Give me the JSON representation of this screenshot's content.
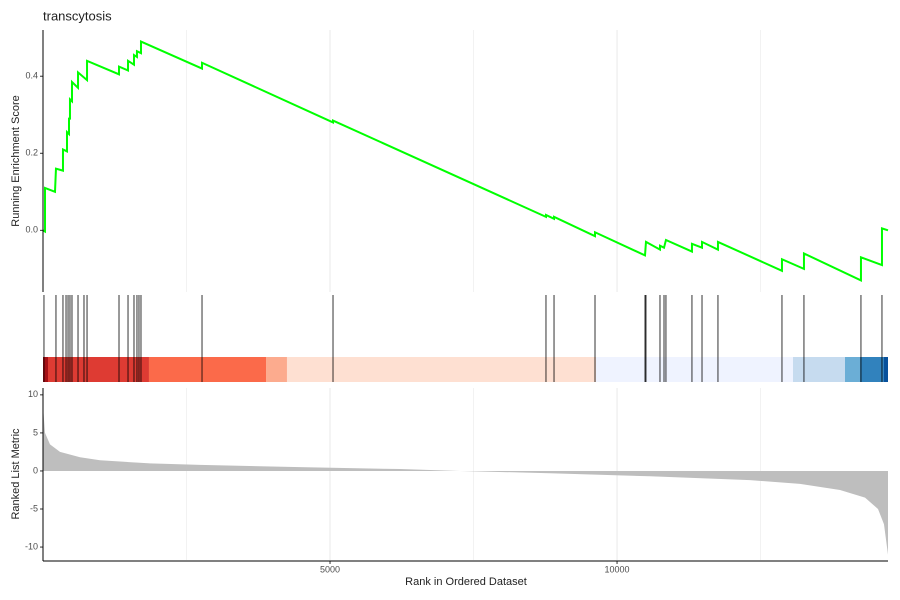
{
  "chart_data": [
    {
      "type": "line",
      "title": "transcytosis",
      "ylabel": "Running Enrichment Score",
      "color": "#00ff00",
      "ylim": [
        -0.16,
        0.52
      ],
      "yticks": [
        {
          "value": 0,
          "label": "0.0"
        },
        0.2,
        0.4
      ],
      "x": [
        0,
        35,
        35,
        209,
        226,
        348,
        348,
        418,
        418,
        453,
        453,
        470,
        470,
        505,
        505,
        610,
        610,
        767,
        767,
        1324,
        1324,
        1481,
        1481,
        1585,
        1585,
        1637,
        1637,
        1707,
        1707,
        2770,
        2770,
        5052,
        5052,
        8762,
        8762,
        8902,
        8902,
        9616,
        9616,
        10487,
        10504,
        10748,
        10748,
        10818,
        10852,
        11305,
        11305,
        11480,
        11480,
        11758,
        11758,
        12873,
        12873,
        13256,
        13256,
        14249,
        14249,
        14615,
        14615,
        14720
      ],
      "values": [
        0,
        -0.003,
        0.11,
        0.1,
        0.16,
        0.155,
        0.21,
        0.205,
        0.255,
        0.25,
        0.29,
        0.29,
        0.34,
        0.335,
        0.385,
        0.37,
        0.41,
        0.39,
        0.44,
        0.405,
        0.425,
        0.415,
        0.44,
        0.43,
        0.455,
        0.45,
        0.465,
        0.46,
        0.49,
        0.42,
        0.435,
        0.28,
        0.285,
        0.035,
        0.04,
        0.03,
        0.035,
        -0.015,
        -0.005,
        -0.065,
        -0.03,
        -0.05,
        -0.04,
        -0.045,
        -0.025,
        -0.055,
        -0.035,
        -0.045,
        -0.03,
        -0.05,
        -0.03,
        -0.105,
        -0.075,
        -0.1,
        -0.06,
        -0.13,
        -0.07,
        -0.09,
        0.005,
        0.0
      ]
    },
    {
      "type": "rug",
      "hits": [
        17,
        226,
        348,
        401,
        436,
        470,
        505,
        610,
        714,
        767,
        1324,
        1481,
        1585,
        1637,
        1672,
        1707,
        2770,
        5052,
        8762,
        8902,
        9616,
        10487,
        10504,
        10748,
        10818,
        10852,
        11305,
        11480,
        11758,
        12873,
        13256,
        14249,
        14615
      ],
      "bands": [
        {
          "start": 0,
          "end": 87,
          "color": "#a50f15"
        },
        {
          "start": 87,
          "end": 1846,
          "color": "#de3b33"
        },
        {
          "start": 1846,
          "end": 3885,
          "color": "#fb6a4a"
        },
        {
          "start": 3885,
          "end": 4250,
          "color": "#fcab8e"
        },
        {
          "start": 4250,
          "end": 9633,
          "color": "#fee0d2"
        },
        {
          "start": 9633,
          "end": 13065,
          "color": "#eff3ff"
        },
        {
          "start": 13065,
          "end": 13971,
          "color": "#c6dbef"
        },
        {
          "start": 13971,
          "end": 14233,
          "color": "#6baed6"
        },
        {
          "start": 14233,
          "end": 14650,
          "color": "#3182bd"
        },
        {
          "start": 14650,
          "end": 14720,
          "color": "#08519c"
        }
      ]
    },
    {
      "type": "area",
      "ylabel": "Ranked List Metric",
      "xlabel": "Rank in Ordered Dataset",
      "color": "#bebebe",
      "xlim": [
        0,
        14720
      ],
      "xticks": [
        5000,
        10000
      ],
      "xminor": [
        2500,
        7500,
        12500
      ],
      "grid": true,
      "ylim": [
        -11.7,
        10.9
      ],
      "yticks": [
        -10,
        -5,
        0,
        5,
        10
      ],
      "x": [
        0,
        35,
        122,
        296,
        645,
        993,
        1864,
        2735,
        4477,
        6219,
        7264,
        8832,
        10574,
        12316,
        13187,
        13884,
        14320,
        14546,
        14650,
        14720
      ],
      "values": [
        8.5,
        5,
        3.5,
        2.5,
        1.8,
        1.4,
        1.0,
        0.8,
        0.5,
        0.25,
        0,
        -0.3,
        -0.7,
        -1.2,
        -1.7,
        -2.5,
        -3.5,
        -5,
        -7,
        -11
      ]
    }
  ]
}
